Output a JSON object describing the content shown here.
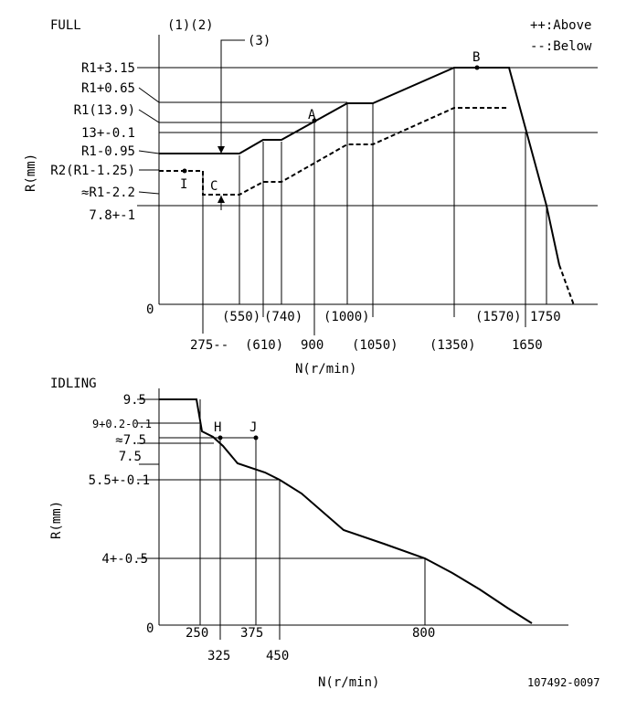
{
  "full": {
    "title": "FULL",
    "header_labels": "(1)(2)",
    "marker3": "(3)",
    "legend": {
      "above": "++:Above",
      "below": "--:Below"
    },
    "y_labels": [
      "R1+3.15",
      "R1+0.65",
      "R1(13.9)",
      "13+-0.1",
      "R1-0.95",
      "R2(R1-1.25)",
      "≈R1-2.2",
      "7.8+-1"
    ],
    "y_axis_title": "R(mm)",
    "origin": "0",
    "x_labels_row1": [
      "(550)",
      "(740)",
      "(1000)",
      "(1570)",
      "1750"
    ],
    "x_labels_row2": [
      "275--",
      "(610)",
      "900",
      "(1050)",
      "(1350)",
      "1650"
    ],
    "x_axis_title": "N(r/min)",
    "points": {
      "A": "A",
      "B": "B",
      "C": "C",
      "I": "I"
    }
  },
  "idling": {
    "title": "IDLING",
    "y_labels": [
      "9.5",
      "9+0.2-0.1",
      "≈7.5",
      "7.5",
      "5.5+-0.1",
      "4+-0.5"
    ],
    "y_axis_title": "R(mm)",
    "origin": "0",
    "x_labels_row1": [
      "250",
      "375",
      "800"
    ],
    "x_labels_row2": [
      "325",
      "450"
    ],
    "x_axis_title": "N(r/min)",
    "points": {
      "H": "H",
      "J": "J"
    }
  },
  "footer": {
    "code": "107492-0097"
  }
}
